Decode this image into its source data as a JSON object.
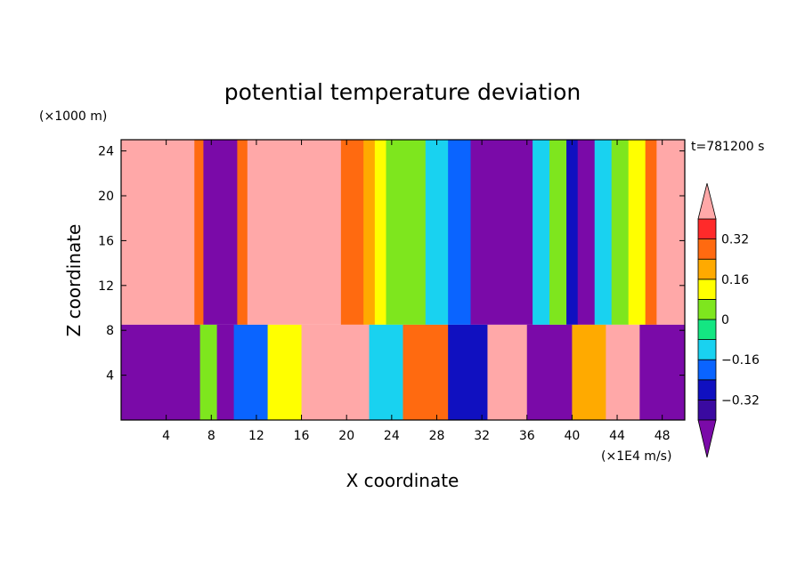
{
  "chart_data": {
    "type": "heatmap",
    "title": "potential temperature deviation",
    "xlabel": "X coordinate",
    "ylabel": "Z coordinate",
    "x_unit": "(×1E4 m/s)",
    "y_unit": "(×1000 m)",
    "time_label": "t=781200 s",
    "xlim": [
      0,
      50
    ],
    "ylim": [
      0,
      25
    ],
    "x_ticks": [
      {
        "value": 4,
        "label": "4"
      },
      {
        "value": 8,
        "label": "8"
      },
      {
        "value": 12,
        "label": "12"
      },
      {
        "value": 16,
        "label": "16"
      },
      {
        "value": 20,
        "label": "20"
      },
      {
        "value": 24,
        "label": "24"
      },
      {
        "value": 28,
        "label": "28"
      },
      {
        "value": 32,
        "label": "32"
      },
      {
        "value": 36,
        "label": "36"
      },
      {
        "value": 40,
        "label": "40"
      },
      {
        "value": 44,
        "label": "44"
      },
      {
        "value": 48,
        "label": "48"
      }
    ],
    "y_ticks": [
      {
        "value": 4,
        "label": "4"
      },
      {
        "value": 8,
        "label": "8"
      },
      {
        "value": 12,
        "label": "12"
      },
      {
        "value": 16,
        "label": "16"
      },
      {
        "value": 20,
        "label": "20"
      },
      {
        "value": 24,
        "label": "24"
      }
    ],
    "colorbar": {
      "levels": [
        -0.4,
        -0.32,
        -0.24,
        -0.16,
        -0.08,
        0,
        0.08,
        0.16,
        0.24,
        0.32,
        0.4
      ],
      "colors": [
        "#7a0aa8",
        "#3a0aa0",
        "#1010c0",
        "#0a64ff",
        "#19d2f0",
        "#14e682",
        "#7ee61e",
        "#ffff00",
        "#ffaa00",
        "#ff6a10",
        "#ff2a2a",
        "#ffa8a8"
      ],
      "tick_labels": [
        {
          "value": 0.32,
          "label": "0.32"
        },
        {
          "value": 0.16,
          "label": "0.16"
        },
        {
          "value": 0,
          "label": "0"
        },
        {
          "value": -0.16,
          "label": "−0.16"
        },
        {
          "value": -0.32,
          "label": "−0.32"
        }
      ]
    },
    "grid": false,
    "legend": "colorbar-right",
    "upper_region_columns": [
      {
        "x0": 0,
        "x1": 6.5,
        "value": 0.45
      },
      {
        "x0": 6.5,
        "x1": 7.3,
        "value": 0.3
      },
      {
        "x0": 7.3,
        "x1": 10.3,
        "value": -0.45
      },
      {
        "x0": 10.3,
        "x1": 11.2,
        "value": 0.3
      },
      {
        "x0": 11.2,
        "x1": 19.5,
        "value": 0.45
      },
      {
        "x0": 19.5,
        "x1": 21.5,
        "value": 0.3
      },
      {
        "x0": 21.5,
        "x1": 22.5,
        "value": 0.18
      },
      {
        "x0": 22.5,
        "x1": 23.5,
        "value": 0.1
      },
      {
        "x0": 23.5,
        "x1": 27,
        "value": 0.04
      },
      {
        "x0": 27,
        "x1": 29,
        "value": -0.1
      },
      {
        "x0": 29,
        "x1": 31,
        "value": -0.2
      },
      {
        "x0": 31,
        "x1": 36.5,
        "value": -0.45
      },
      {
        "x0": 36.5,
        "x1": 38,
        "value": -0.1
      },
      {
        "x0": 38,
        "x1": 39.5,
        "value": 0.04
      },
      {
        "x0": 39.5,
        "x1": 40.5,
        "value": -0.3
      },
      {
        "x0": 40.5,
        "x1": 42,
        "value": -0.45
      },
      {
        "x0": 42,
        "x1": 43.5,
        "value": -0.1
      },
      {
        "x0": 43.5,
        "x1": 45,
        "value": 0.04
      },
      {
        "x0": 45,
        "x1": 46.5,
        "value": 0.1
      },
      {
        "x0": 46.5,
        "x1": 47.5,
        "value": 0.3
      },
      {
        "x0": 47.5,
        "x1": 50,
        "value": 0.45
      }
    ],
    "lower_region_columns": [
      {
        "x0": 0,
        "x1": 7,
        "value": -0.45
      },
      {
        "x0": 7,
        "x1": 8.5,
        "value": 0.04
      },
      {
        "x0": 8.5,
        "x1": 10,
        "value": -0.45
      },
      {
        "x0": 10,
        "x1": 13,
        "value": -0.2
      },
      {
        "x0": 13,
        "x1": 16,
        "value": 0.1
      },
      {
        "x0": 16,
        "x1": 22,
        "value": 0.4
      },
      {
        "x0": 22,
        "x1": 25,
        "value": -0.1
      },
      {
        "x0": 25,
        "x1": 29,
        "value": 0.3
      },
      {
        "x0": 29,
        "x1": 32.5,
        "value": -0.3
      },
      {
        "x0": 32.5,
        "x1": 36,
        "value": 0.45
      },
      {
        "x0": 36,
        "x1": 40,
        "value": -0.45
      },
      {
        "x0": 40,
        "x1": 43,
        "value": 0.2
      },
      {
        "x0": 43,
        "x1": 46,
        "value": 0.4
      },
      {
        "x0": 46,
        "x1": 50,
        "value": -0.45
      }
    ],
    "inversion_height": 8.5
  }
}
